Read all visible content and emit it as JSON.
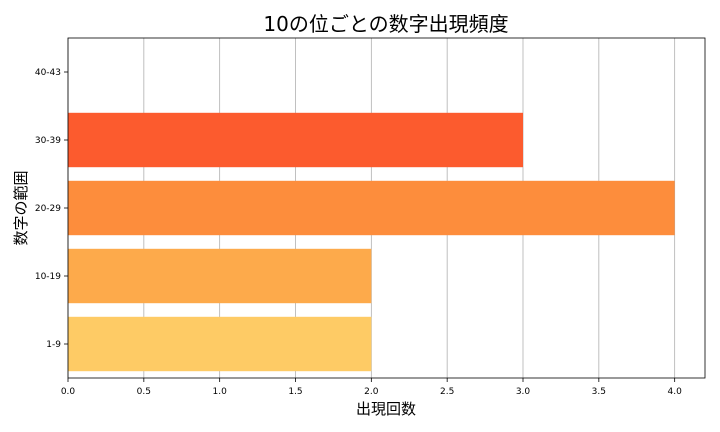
{
  "chart_data": {
    "type": "bar",
    "orientation": "horizontal",
    "title": "10の位ごとの数字出現頻度",
    "xlabel": "出現回数",
    "ylabel": "数字の範囲",
    "categories": [
      "1-9",
      "10-19",
      "20-29",
      "30-39",
      "40-43"
    ],
    "values": [
      2,
      2,
      4,
      3,
      0
    ],
    "bar_colors": [
      "#fecb65",
      "#fdaa4b",
      "#fd8d3c",
      "#fc5b2e",
      "#e31a1c"
    ],
    "xlim": [
      0,
      4.2
    ],
    "xticks": [
      "0.0",
      "0.5",
      "1.0",
      "1.5",
      "2.0",
      "2.5",
      "3.0",
      "3.5",
      "4.0"
    ],
    "grid": "x"
  }
}
